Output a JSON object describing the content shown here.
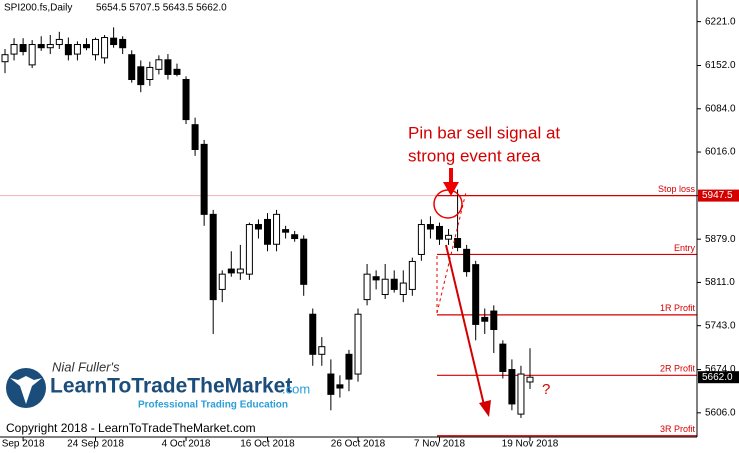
{
  "chart_data": {
    "type": "candlestick",
    "title": "SPI200.fs,Daily",
    "ohlc_label": "5654.5 5707.5 5643.5 5662.0",
    "categories": [
      null,
      null,
      "Sep 2018",
      null,
      null,
      null,
      null,
      null,
      null,
      null,
      "24 Sep 2018",
      null,
      null,
      null,
      null,
      null,
      null,
      null,
      null,
      null,
      "4 Oct 2018",
      null,
      null,
      null,
      null,
      null,
      null,
      null,
      null,
      "16 Oct 2018",
      null,
      null,
      null,
      null,
      null,
      null,
      null,
      null,
      null,
      "26 Oct 2018",
      null,
      null,
      null,
      null,
      null,
      null,
      null,
      null,
      "7 Nov 2018",
      null,
      null,
      null,
      null,
      null,
      null,
      null,
      null,
      null,
      "19 Nov 2018"
    ],
    "open": [
      6158,
      6170,
      6185,
      6153,
      6185,
      6180,
      6185,
      6185,
      6170,
      6185,
      6169,
      6164,
      6195,
      6193,
      6169,
      6150,
      6130,
      6146,
      6161,
      6146,
      6130,
      6059,
      6028,
      5918,
      5800,
      5832,
      5826,
      5824,
      5902,
      5910,
      5871,
      5894,
      5886,
      5879,
      5761,
      5698,
      5667,
      5650,
      5698,
      5667,
      5784,
      5820,
      5792,
      5816,
      5792,
      5800,
      5855,
      5902,
      5899,
      5879,
      5880,
      5863,
      5839,
      5756,
      5766,
      5714,
      5674,
      5604,
      5654.5
    ],
    "high": [
      6178,
      6195,
      6195,
      6192,
      6198,
      6200,
      6205,
      6196,
      6190,
      6195,
      6196,
      6200,
      6212,
      6198,
      6176,
      6160,
      6158,
      6168,
      6170,
      6155,
      6135,
      6070,
      6035,
      5925,
      5830,
      5860,
      5870,
      5905,
      5910,
      5920,
      5925,
      5900,
      5892,
      5885,
      5770,
      5725,
      5690,
      5665,
      5705,
      5770,
      5840,
      5830,
      5840,
      5830,
      5830,
      5850,
      5910,
      5915,
      5905,
      5895,
      5957,
      5870,
      5845,
      5770,
      5775,
      5720,
      5690,
      5680,
      5707.5
    ],
    "low": [
      6140,
      6160,
      6168,
      6148,
      6175,
      6170,
      6178,
      6160,
      6160,
      6176,
      6160,
      6155,
      6180,
      6170,
      6125,
      6110,
      6120,
      6138,
      6130,
      6135,
      6060,
      6010,
      5900,
      5730,
      5780,
      5820,
      5815,
      5815,
      5880,
      5860,
      5860,
      5880,
      5875,
      5790,
      5680,
      5680,
      5610,
      5630,
      5640,
      5655,
      5775,
      5800,
      5785,
      5795,
      5780,
      5790,
      5845,
      5880,
      5870,
      5870,
      5860,
      5820,
      5720,
      5730,
      5700,
      5660,
      5610,
      5598,
      5643.5
    ],
    "close": [
      6169,
      6185,
      6174,
      6185,
      6180,
      6185,
      6193,
      6169,
      6185,
      6180,
      6193,
      6196,
      6185,
      6180,
      6130,
      6122,
      6149,
      6161,
      6138,
      6138,
      6067,
      6020,
      5918,
      5784,
      5824,
      5826,
      5832,
      5902,
      5895,
      5871,
      5918,
      5890,
      5880,
      5808,
      5698,
      5710,
      5635,
      5645,
      5659,
      5761,
      5824,
      5815,
      5816,
      5800,
      5810,
      5844,
      5902,
      5895,
      5879,
      5885,
      5866,
      5828,
      5745,
      5750,
      5737,
      5671,
      5620,
      5667,
      5662
    ],
    "up_color": "#ffffff",
    "down_color": "#000000",
    "ylim": [
      5568,
      6255
    ],
    "yticks": [
      {
        "value": 6221,
        "label": "6221.0"
      },
      {
        "value": 6152,
        "label": "6152.0"
      },
      {
        "value": 6084,
        "label": "6084.0"
      },
      {
        "value": 6016,
        "label": "6016.0"
      },
      5947.5,
      {
        "value": 5879,
        "label": "5879.0"
      },
      {
        "value": 5811,
        "label": "5811.0"
      },
      {
        "value": 5743,
        "label": "5743.0"
      },
      {
        "value": 5674,
        "label": "5674.0"
      },
      {
        "value": 5606,
        "label": "5606.0"
      }
    ],
    "levels": [
      {
        "label": "Stop loss",
        "value": 5947.5
      },
      {
        "label": "Entry",
        "value": 5855
      },
      {
        "label": "1R Profit",
        "value": 5760
      },
      {
        "label": "2R Profit",
        "value": 5665
      },
      {
        "label": "3R Profit",
        "value": 5570
      }
    ],
    "level_color": "#d40000",
    "price_labels": [
      {
        "value": 5947.5,
        "color": "#d40000"
      },
      {
        "value": {
          "value": 5662,
          "label": "5662.0"
        },
        "color": "#000000"
      }
    ],
    "annotations": [
      "Pin bar sell signal at",
      "strong event area",
      "?"
    ],
    "copyright": "Copyright 2018 - LearnToTradeTheMarket.com",
    "logo": {
      "author": "Nial Fuller's",
      "brand": "LearnToTradeTheMarket",
      "domain": ".com",
      "tagline": "Professional Trading Education"
    }
  }
}
